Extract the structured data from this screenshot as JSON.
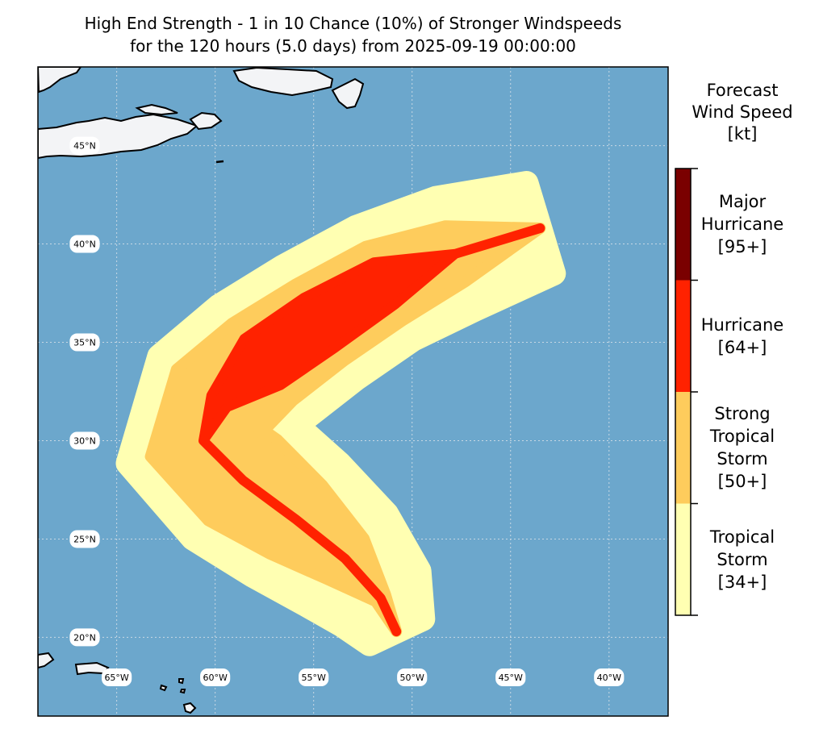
{
  "title": {
    "line1": "High End Strength - 1 in 10 Chance (10%) of Stronger Windspeeds",
    "line2": "for the 120 hours (5.0 days) from 2025-09-19 00:00:00"
  },
  "map": {
    "extent": {
      "lon": [
        -69,
        -37
      ],
      "lat": [
        16,
        49
      ]
    },
    "ocean_color": "#6ca7cc",
    "land_color": "#f3f4f6",
    "lat_labels": [
      {
        "value": 45,
        "label": "45°N"
      },
      {
        "value": 40,
        "label": "40°N"
      },
      {
        "value": 35,
        "label": "35°N"
      },
      {
        "value": 30,
        "label": "30°N"
      },
      {
        "value": 25,
        "label": "25°N"
      },
      {
        "value": 20,
        "label": "20°N"
      }
    ],
    "lon_labels": [
      {
        "value": -65,
        "label": "65°W"
      },
      {
        "value": -60,
        "label": "60°W"
      },
      {
        "value": -55,
        "label": "55°W"
      },
      {
        "value": -50,
        "label": "50°W"
      },
      {
        "value": -45,
        "label": "45°W"
      },
      {
        "value": -40,
        "label": "40°W"
      }
    ],
    "track_swath": {
      "lats": [
        20.3,
        22,
        24,
        26,
        28,
        30,
        32,
        34,
        36,
        38,
        39.5,
        40.8
      ],
      "lons": [
        -50.8,
        -51.6,
        -53.4,
        -55.9,
        -58.6,
        -60.6,
        -59.8,
        -57.6,
        -54.7,
        -51.4,
        -47.8,
        -43.5
      ],
      "tropical_storm_halfwidth_deg": [
        1.5,
        2.4,
        3.1,
        3.6,
        3.9,
        4.0,
        3.8,
        3.6,
        3.4,
        3.2,
        3.0,
        2.4
      ],
      "strong_tropical_storm_halfwidth_deg": [
        0,
        0.3,
        1.4,
        2.2,
        2.7,
        2.8,
        2.7,
        2.5,
        2.3,
        2.1,
        1.5,
        0
      ],
      "hurricane_halfwidth_deg": [
        0,
        0,
        0,
        0,
        0,
        0,
        0.5,
        1.5,
        1.5,
        1.2,
        0,
        0
      ]
    }
  },
  "colorbar": {
    "title_lines": [
      "Forecast",
      "Wind Speed",
      "[kt]"
    ],
    "categories": [
      {
        "lines": [
          "Tropical",
          "Storm",
          "[34+]"
        ],
        "color": "#ffffb2"
      },
      {
        "lines": [
          "Strong",
          "Tropical",
          "Storm",
          "[50+]"
        ],
        "color": "#fecc5c"
      },
      {
        "lines": [
          "Hurricane",
          "[64+]"
        ],
        "color": "#ff2200"
      },
      {
        "lines": [
          "Major",
          "Hurricane",
          "[95+]"
        ],
        "color": "#7a0000"
      }
    ]
  }
}
